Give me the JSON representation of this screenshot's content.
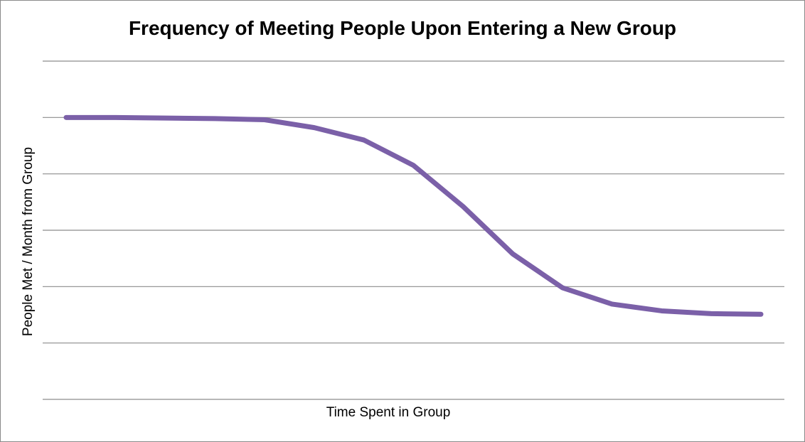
{
  "chart_data": {
    "type": "line",
    "title": "Frequency of Meeting People Upon Entering a New Group",
    "xlabel": "Time Spent in Group",
    "ylabel": "People Met / Month from Group",
    "ylim": [
      0,
      6
    ],
    "grid": true,
    "x": [
      0,
      1,
      2,
      3,
      4,
      5,
      6,
      7,
      8,
      9,
      10,
      11,
      12,
      13,
      14
    ],
    "series": [
      {
        "values": [
          5,
          5,
          4.99,
          4.98,
          4.96,
          4.82,
          4.6,
          4.15,
          3.42,
          2.58,
          1.98,
          1.69,
          1.57,
          1.52,
          1.51
        ]
      }
    ],
    "colors": {
      "line": "#7b60a8",
      "grid": "#8c8c8c"
    }
  }
}
